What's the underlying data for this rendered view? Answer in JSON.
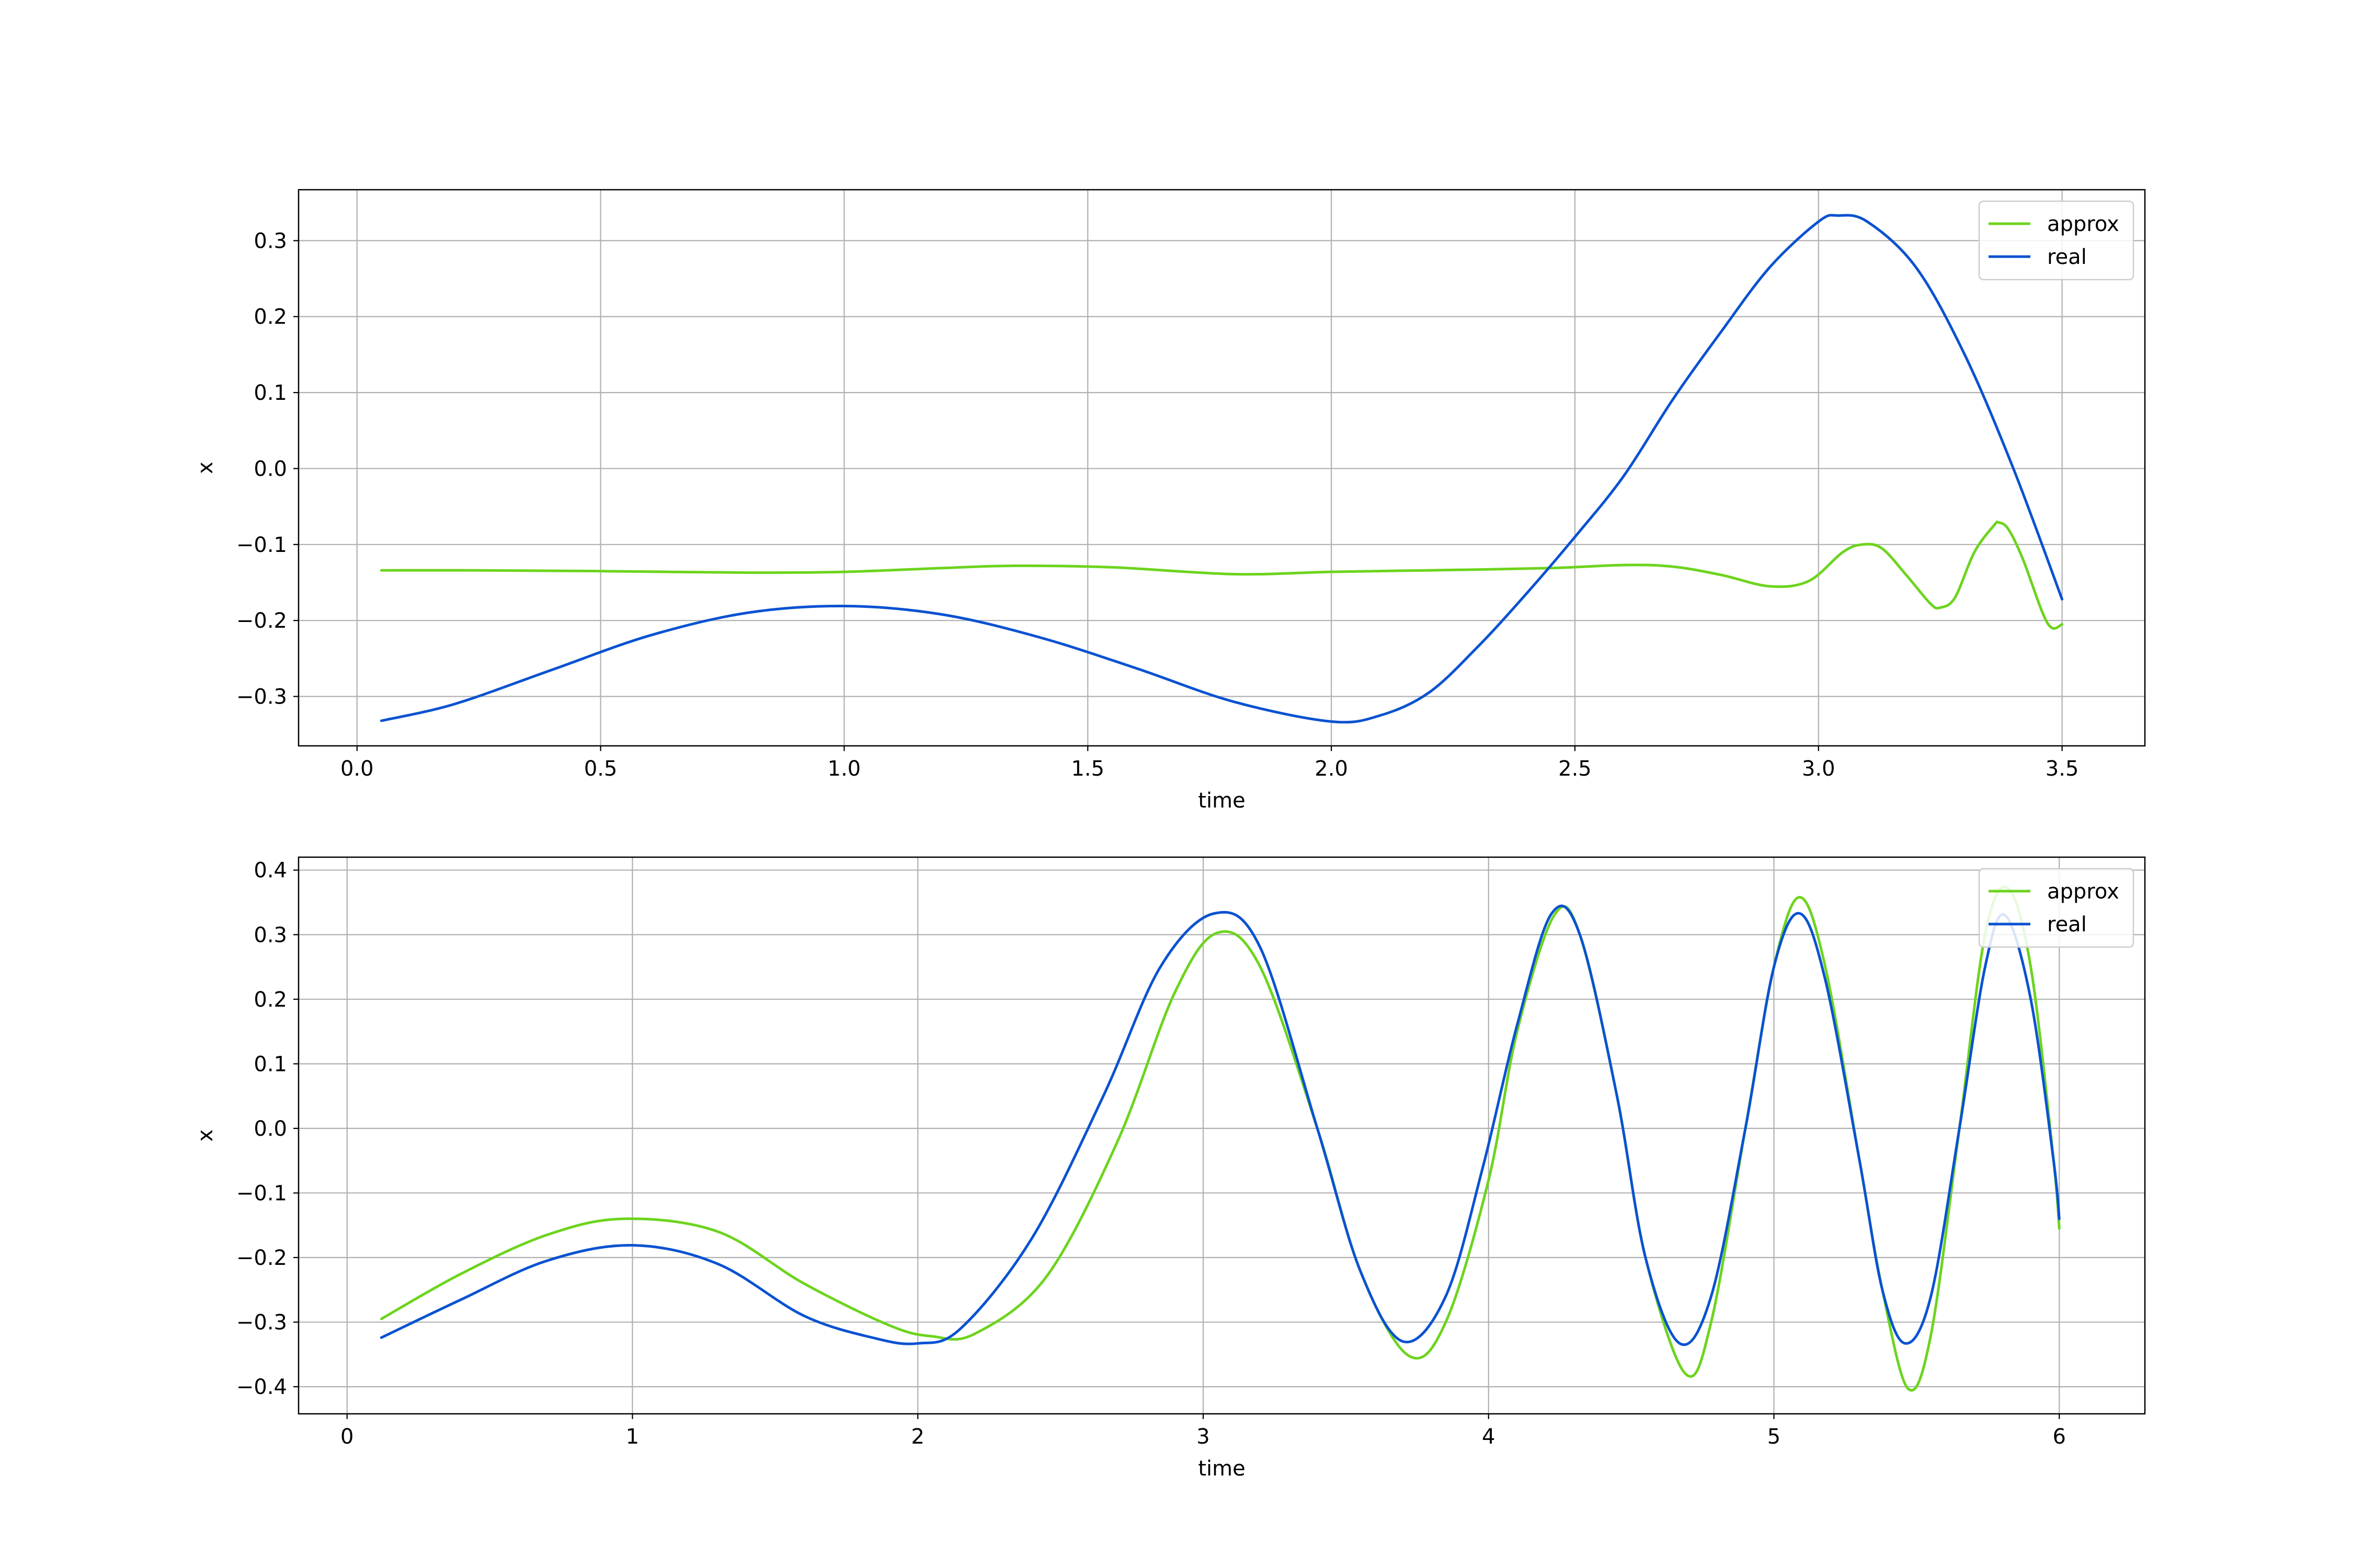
{
  "colors": {
    "approx": "#6dd41e",
    "real": "#0a52d1",
    "grid": "#b0b0b0",
    "axes": "#000000",
    "background": "#ffffff"
  },
  "chart_data": [
    {
      "type": "line",
      "title": "",
      "xlabel": "time",
      "ylabel": "x",
      "xlim": [
        -0.12,
        3.67
      ],
      "ylim": [
        -0.365,
        0.367
      ],
      "xticks": [
        0.0,
        0.5,
        1.0,
        1.5,
        2.0,
        2.5,
        3.0,
        3.5
      ],
      "xtick_labels": [
        "0.0",
        "0.5",
        "1.0",
        "1.5",
        "2.0",
        "2.5",
        "3.0",
        "3.5"
      ],
      "yticks": [
        -0.3,
        -0.2,
        -0.1,
        0.0,
        0.1,
        0.2,
        0.3
      ],
      "ytick_labels": [
        "−0.3",
        "−0.2",
        "−0.1",
        "0.0",
        "0.1",
        "0.2",
        "0.3"
      ],
      "grid": true,
      "legend": {
        "position": "top-right",
        "entries": [
          "approx",
          "real"
        ]
      },
      "series": [
        {
          "name": "approx",
          "color": "#6dd41e",
          "x": [
            0.05,
            0.25,
            0.5,
            0.8,
            1.0,
            1.2,
            1.35,
            1.55,
            1.8,
            2.0,
            2.2,
            2.45,
            2.6,
            2.7,
            2.8,
            2.9,
            2.98,
            3.05,
            3.09,
            3.13,
            3.18,
            3.23,
            3.25,
            3.28,
            3.32,
            3.36,
            3.37,
            3.39,
            3.42,
            3.46,
            3.48,
            3.5
          ],
          "y": [
            -0.134,
            -0.134,
            -0.135,
            -0.137,
            -0.136,
            -0.131,
            -0.128,
            -0.13,
            -0.139,
            -0.136,
            -0.134,
            -0.131,
            -0.127,
            -0.129,
            -0.14,
            -0.155,
            -0.148,
            -0.11,
            -0.1,
            -0.105,
            -0.14,
            -0.178,
            -0.183,
            -0.17,
            -0.11,
            -0.075,
            -0.071,
            -0.08,
            -0.12,
            -0.19,
            -0.21,
            -0.205
          ]
        },
        {
          "name": "real",
          "color": "#0a52d1",
          "x": [
            0.05,
            0.2,
            0.4,
            0.6,
            0.8,
            1.0,
            1.2,
            1.4,
            1.6,
            1.8,
            2.0,
            2.1,
            2.2,
            2.3,
            2.4,
            2.5,
            2.6,
            2.7,
            2.8,
            2.9,
            3.0,
            3.04,
            3.1,
            3.2,
            3.3,
            3.4,
            3.5
          ],
          "y": [
            -0.332,
            -0.31,
            -0.265,
            -0.22,
            -0.19,
            -0.181,
            -0.192,
            -0.222,
            -0.263,
            -0.307,
            -0.333,
            -0.325,
            -0.295,
            -0.235,
            -0.165,
            -0.09,
            -0.01,
            0.09,
            0.18,
            0.265,
            0.325,
            0.333,
            0.325,
            0.265,
            0.15,
            0.0,
            -0.172
          ]
        }
      ]
    },
    {
      "type": "line",
      "title": "",
      "xlabel": "time",
      "ylabel": "x",
      "xlim": [
        -0.17,
        6.3
      ],
      "ylim": [
        -0.442,
        0.42
      ],
      "xticks": [
        0,
        1,
        2,
        3,
        4,
        5,
        6
      ],
      "xtick_labels": [
        "0",
        "1",
        "2",
        "3",
        "4",
        "5",
        "6"
      ],
      "yticks": [
        -0.4,
        -0.3,
        -0.2,
        -0.1,
        0.0,
        0.1,
        0.2,
        0.3,
        0.4
      ],
      "ytick_labels": [
        "−0.4",
        "−0.3",
        "−0.2",
        "−0.1",
        "0.0",
        "0.1",
        "0.2",
        "0.3",
        "0.4"
      ],
      "grid": true,
      "legend": {
        "position": "top-right",
        "entries": [
          "approx",
          "real"
        ]
      },
      "series": [
        {
          "name": "approx",
          "color": "#6dd41e",
          "x": [
            0.12,
            0.4,
            0.7,
            0.97,
            1.3,
            1.6,
            1.9,
            2.05,
            2.2,
            2.45,
            2.7,
            2.9,
            3.05,
            3.2,
            3.4,
            3.55,
            3.72,
            3.85,
            4.0,
            4.1,
            4.23,
            4.32,
            4.45,
            4.55,
            4.69,
            4.78,
            4.9,
            5.0,
            5.09,
            5.18,
            5.3,
            5.38,
            5.47,
            5.55,
            5.65,
            5.74,
            5.82,
            5.9,
            5.98,
            6.0
          ],
          "y": [
            -0.295,
            -0.225,
            -0.165,
            -0.14,
            -0.16,
            -0.24,
            -0.305,
            -0.322,
            -0.318,
            -0.23,
            -0.02,
            0.21,
            0.303,
            0.25,
            0.0,
            -0.22,
            -0.352,
            -0.3,
            -0.08,
            0.15,
            0.33,
            0.3,
            0.05,
            -0.2,
            -0.38,
            -0.3,
            0.0,
            0.25,
            0.358,
            0.25,
            -0.05,
            -0.25,
            -0.403,
            -0.32,
            0.0,
            0.3,
            0.372,
            0.25,
            -0.05,
            -0.155
          ]
        },
        {
          "name": "real",
          "color": "#0a52d1",
          "x": [
            0.12,
            0.4,
            0.7,
            1.0,
            1.3,
            1.6,
            1.85,
            2.0,
            2.15,
            2.4,
            2.65,
            2.85,
            3.04,
            3.2,
            3.4,
            3.55,
            3.7,
            3.85,
            3.98,
            4.1,
            4.22,
            4.32,
            4.45,
            4.55,
            4.67,
            4.78,
            4.9,
            5.0,
            5.09,
            5.18,
            5.3,
            5.38,
            5.46,
            5.55,
            5.65,
            5.74,
            5.81,
            5.9,
            5.98,
            6.0
          ],
          "y": [
            -0.324,
            -0.265,
            -0.205,
            -0.181,
            -0.21,
            -0.29,
            -0.325,
            -0.333,
            -0.31,
            -0.17,
            0.05,
            0.25,
            0.333,
            0.28,
            0.0,
            -0.22,
            -0.33,
            -0.26,
            -0.06,
            0.16,
            0.332,
            0.3,
            0.05,
            -0.2,
            -0.333,
            -0.26,
            0.0,
            0.25,
            0.333,
            0.23,
            -0.05,
            -0.25,
            -0.333,
            -0.26,
            0.0,
            0.25,
            0.33,
            0.2,
            -0.05,
            -0.14
          ]
        }
      ]
    }
  ]
}
